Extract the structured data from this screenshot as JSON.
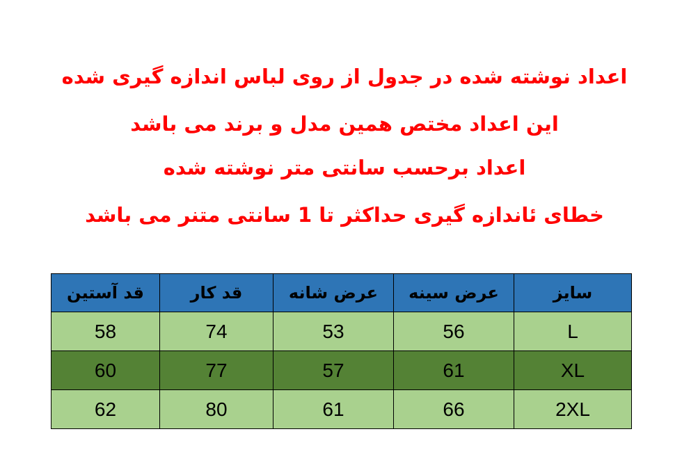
{
  "notes": [
    "اعداد نوشته شده در جدول از روی لباس اندازه گیری شده",
    "این اعداد مختص همین مدل و برند می باشد",
    "اعداد برحسب سانتی متر نوشته شده",
    "خطای ئاندازه گیری حداکثر تا 1 سانتی متنر می باشد"
  ],
  "colors": {
    "note_text": "#ff0000",
    "header_bg": "#2e75b6",
    "row_light": "#a9d18e",
    "row_dark": "#548235"
  },
  "table": {
    "headers": [
      "سایز",
      "عرض سینه",
      "عرض شانه",
      "قد کار",
      "قد آستین"
    ],
    "rows": [
      [
        "L",
        "56",
        "53",
        "74",
        "58"
      ],
      [
        "XL",
        "61",
        "57",
        "77",
        "60"
      ],
      [
        "2XL",
        "66",
        "61",
        "80",
        "62"
      ]
    ]
  }
}
